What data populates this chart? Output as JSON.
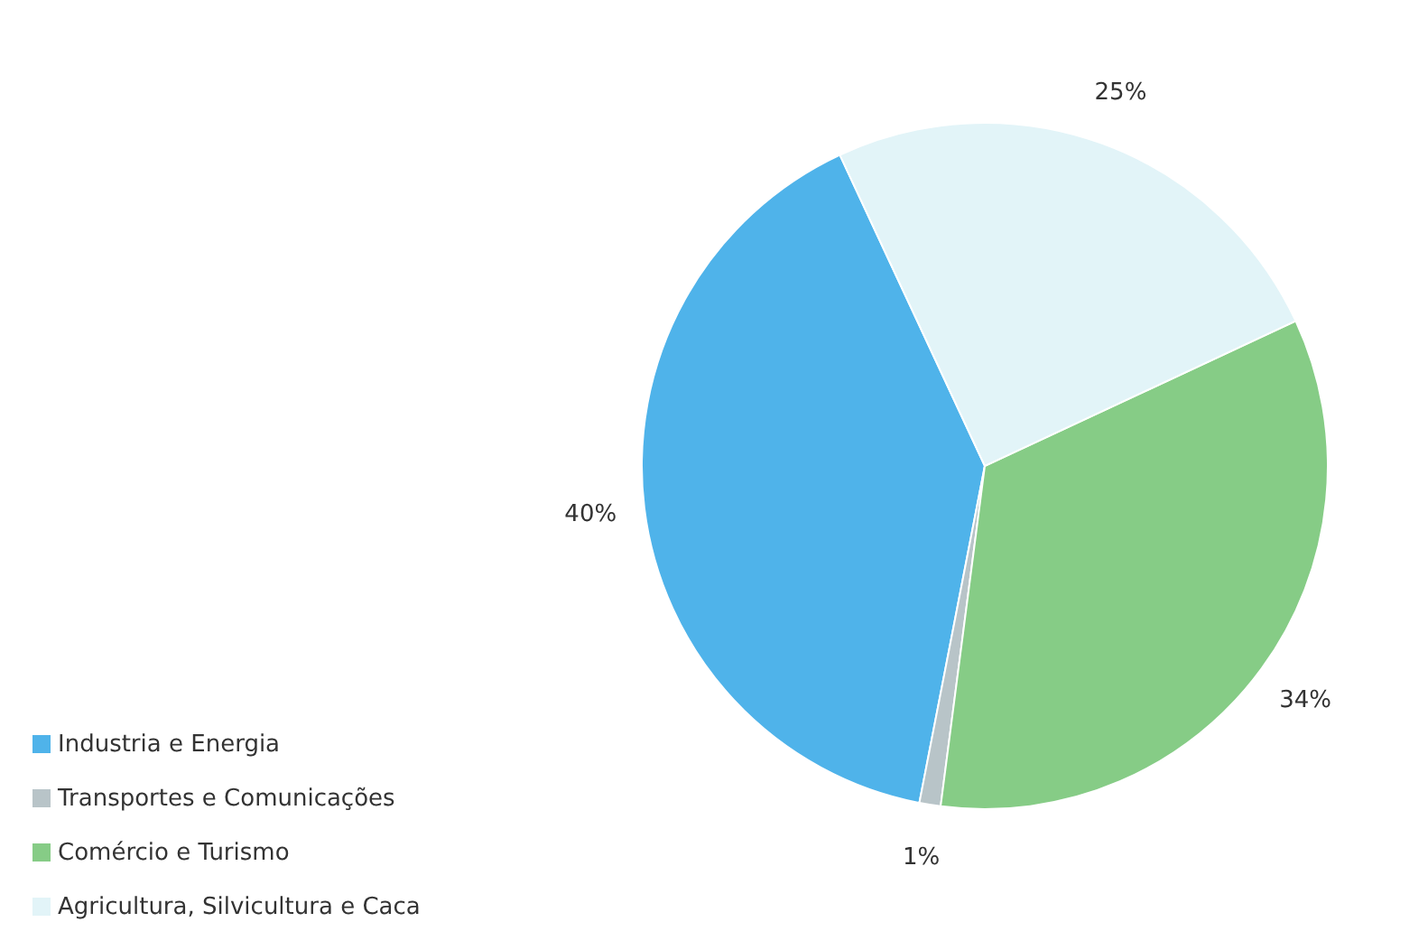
{
  "chart_data": {
    "type": "pie",
    "categories": [
      "Industria e Energia",
      "Transportes e Comunicações",
      "Comércio e Turismo",
      "Agricultura, Silvicultura e Caca"
    ],
    "values": [
      40,
      1,
      34,
      25
    ],
    "value_labels": [
      "40%",
      "1%",
      "34%",
      "25%"
    ],
    "colors": [
      "#4fb3ea",
      "#b8c4c8",
      "#86cc86",
      "#e2f4f8"
    ],
    "legend": "bottom left"
  }
}
